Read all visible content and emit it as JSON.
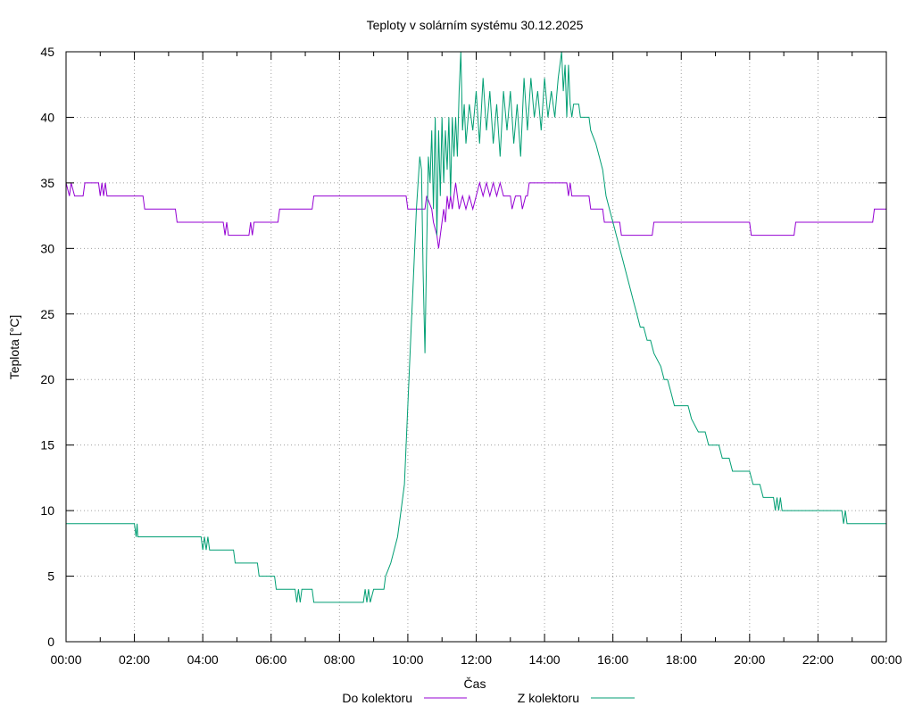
{
  "chart_data": {
    "type": "line",
    "title": "Teploty v solárním systému 30.12.2025",
    "xlabel": "Čas",
    "ylabel": "Teplota [°C]",
    "xlim": [
      0,
      24
    ],
    "ylim": [
      0,
      45
    ],
    "grid": true,
    "legend_position": "bottom",
    "x_ticks": [
      {
        "value": 0,
        "label": "00:00"
      },
      {
        "value": 2,
        "label": "02:00"
      },
      {
        "value": 4,
        "label": "04:00"
      },
      {
        "value": 6,
        "label": "06:00"
      },
      {
        "value": 8,
        "label": "08:00"
      },
      {
        "value": 10,
        "label": "10:00"
      },
      {
        "value": 12,
        "label": "12:00"
      },
      {
        "value": 14,
        "label": "14:00"
      },
      {
        "value": 16,
        "label": "16:00"
      },
      {
        "value": 18,
        "label": "18:00"
      },
      {
        "value": 20,
        "label": "20:00"
      },
      {
        "value": 22,
        "label": "22:00"
      },
      {
        "value": 24,
        "label": "00:00"
      }
    ],
    "y_ticks": [
      {
        "value": 0,
        "label": "0"
      },
      {
        "value": 5,
        "label": "5"
      },
      {
        "value": 10,
        "label": "10"
      },
      {
        "value": 15,
        "label": "15"
      },
      {
        "value": 20,
        "label": "20"
      },
      {
        "value": 25,
        "label": "25"
      },
      {
        "value": 30,
        "label": "30"
      },
      {
        "value": 35,
        "label": "35"
      },
      {
        "value": 40,
        "label": "40"
      },
      {
        "value": 45,
        "label": "45"
      }
    ],
    "series": [
      {
        "name": "Do kolektoru",
        "color": "#9400d3",
        "points": [
          [
            0,
            35
          ],
          [
            0.1,
            34
          ],
          [
            0.15,
            35
          ],
          [
            0.25,
            34
          ],
          [
            0.5,
            34
          ],
          [
            0.55,
            35
          ],
          [
            0.95,
            35
          ],
          [
            1.0,
            34
          ],
          [
            1.05,
            35
          ],
          [
            1.1,
            34
          ],
          [
            1.15,
            35
          ],
          [
            1.2,
            34
          ],
          [
            2.25,
            34
          ],
          [
            2.3,
            33
          ],
          [
            3.2,
            33
          ],
          [
            3.25,
            32
          ],
          [
            4.6,
            32
          ],
          [
            4.65,
            31
          ],
          [
            4.7,
            32
          ],
          [
            4.75,
            31
          ],
          [
            5.35,
            31
          ],
          [
            5.4,
            32
          ],
          [
            5.45,
            31
          ],
          [
            5.5,
            32
          ],
          [
            6.2,
            32
          ],
          [
            6.25,
            33
          ],
          [
            7.2,
            33
          ],
          [
            7.25,
            34
          ],
          [
            9.95,
            34
          ],
          [
            10.0,
            33
          ],
          [
            10.5,
            33
          ],
          [
            10.55,
            34
          ],
          [
            10.7,
            33
          ],
          [
            10.75,
            32
          ],
          [
            10.85,
            31
          ],
          [
            10.9,
            30
          ],
          [
            10.95,
            31
          ],
          [
            11.0,
            32
          ],
          [
            11.05,
            33
          ],
          [
            11.1,
            32
          ],
          [
            11.15,
            34
          ],
          [
            11.2,
            33
          ],
          [
            11.25,
            34
          ],
          [
            11.3,
            33
          ],
          [
            11.35,
            34
          ],
          [
            11.4,
            35
          ],
          [
            11.45,
            34
          ],
          [
            11.5,
            33
          ],
          [
            11.6,
            34
          ],
          [
            11.7,
            33
          ],
          [
            11.8,
            34
          ],
          [
            11.9,
            33
          ],
          [
            12.0,
            34
          ],
          [
            12.1,
            35
          ],
          [
            12.2,
            34
          ],
          [
            12.3,
            35
          ],
          [
            12.4,
            34
          ],
          [
            12.5,
            35
          ],
          [
            12.6,
            34
          ],
          [
            12.7,
            35
          ],
          [
            12.8,
            34
          ],
          [
            13.0,
            34
          ],
          [
            13.05,
            33
          ],
          [
            13.15,
            34
          ],
          [
            13.3,
            34
          ],
          [
            13.35,
            33
          ],
          [
            13.45,
            34
          ],
          [
            13.5,
            34
          ],
          [
            13.55,
            35
          ],
          [
            14.65,
            35
          ],
          [
            14.7,
            34
          ],
          [
            14.75,
            35
          ],
          [
            14.8,
            34
          ],
          [
            15.3,
            34
          ],
          [
            15.35,
            33
          ],
          [
            15.7,
            33
          ],
          [
            15.75,
            32
          ],
          [
            16.2,
            32
          ],
          [
            16.25,
            31
          ],
          [
            17.15,
            31
          ],
          [
            17.2,
            32
          ],
          [
            20.0,
            32
          ],
          [
            20.05,
            31
          ],
          [
            21.3,
            31
          ],
          [
            21.35,
            32
          ],
          [
            23.6,
            32
          ],
          [
            23.65,
            33
          ],
          [
            24,
            33
          ]
        ]
      },
      {
        "name": "Z kolektoru",
        "color": "#009e73",
        "points": [
          [
            0,
            9
          ],
          [
            2.0,
            9
          ],
          [
            2.05,
            8
          ],
          [
            2.08,
            9
          ],
          [
            2.1,
            8
          ],
          [
            3.95,
            8
          ],
          [
            4.0,
            7
          ],
          [
            4.05,
            8
          ],
          [
            4.1,
            7
          ],
          [
            4.15,
            8
          ],
          [
            4.2,
            7
          ],
          [
            4.9,
            7
          ],
          [
            4.95,
            6
          ],
          [
            5.6,
            6
          ],
          [
            5.65,
            5
          ],
          [
            6.1,
            5
          ],
          [
            6.15,
            4
          ],
          [
            6.7,
            4
          ],
          [
            6.75,
            3
          ],
          [
            6.8,
            4
          ],
          [
            6.85,
            3
          ],
          [
            6.9,
            4
          ],
          [
            7.2,
            4
          ],
          [
            7.25,
            3
          ],
          [
            8.7,
            3
          ],
          [
            8.75,
            4
          ],
          [
            8.8,
            3
          ],
          [
            8.85,
            4
          ],
          [
            8.9,
            3
          ],
          [
            9.0,
            4
          ],
          [
            9.3,
            4
          ],
          [
            9.35,
            5
          ],
          [
            9.5,
            6
          ],
          [
            9.6,
            7
          ],
          [
            9.7,
            8
          ],
          [
            9.8,
            10
          ],
          [
            9.9,
            12
          ],
          [
            9.95,
            15
          ],
          [
            10.0,
            18
          ],
          [
            10.05,
            21
          ],
          [
            10.1,
            24
          ],
          [
            10.15,
            27
          ],
          [
            10.2,
            30
          ],
          [
            10.25,
            33
          ],
          [
            10.3,
            35
          ],
          [
            10.35,
            37
          ],
          [
            10.4,
            36
          ],
          [
            10.45,
            28
          ],
          [
            10.5,
            22
          ],
          [
            10.55,
            30
          ],
          [
            10.6,
            37
          ],
          [
            10.65,
            35
          ],
          [
            10.7,
            39
          ],
          [
            10.75,
            33
          ],
          [
            10.8,
            40
          ],
          [
            10.85,
            31
          ],
          [
            10.9,
            39
          ],
          [
            10.95,
            34
          ],
          [
            11.0,
            40
          ],
          [
            11.05,
            35
          ],
          [
            11.1,
            39
          ],
          [
            11.15,
            36
          ],
          [
            11.2,
            40
          ],
          [
            11.25,
            34
          ],
          [
            11.3,
            40
          ],
          [
            11.35,
            37
          ],
          [
            11.4,
            40
          ],
          [
            11.45,
            37
          ],
          [
            11.5,
            42
          ],
          [
            11.55,
            45
          ],
          [
            11.6,
            39
          ],
          [
            11.65,
            41
          ],
          [
            11.7,
            38
          ],
          [
            11.8,
            41
          ],
          [
            11.9,
            39
          ],
          [
            12.0,
            42
          ],
          [
            12.1,
            38
          ],
          [
            12.2,
            43
          ],
          [
            12.3,
            39
          ],
          [
            12.4,
            42
          ],
          [
            12.5,
            38
          ],
          [
            12.6,
            41
          ],
          [
            12.7,
            37
          ],
          [
            12.8,
            42
          ],
          [
            12.9,
            39
          ],
          [
            13.0,
            42
          ],
          [
            13.1,
            38
          ],
          [
            13.2,
            41
          ],
          [
            13.3,
            37
          ],
          [
            13.4,
            43
          ],
          [
            13.5,
            39
          ],
          [
            13.6,
            43
          ],
          [
            13.7,
            40
          ],
          [
            13.8,
            42
          ],
          [
            13.9,
            39
          ],
          [
            14.0,
            43
          ],
          [
            14.1,
            40
          ],
          [
            14.2,
            42
          ],
          [
            14.3,
            40
          ],
          [
            14.4,
            43
          ],
          [
            14.5,
            45
          ],
          [
            14.55,
            42
          ],
          [
            14.6,
            44
          ],
          [
            14.65,
            40
          ],
          [
            14.7,
            44
          ],
          [
            14.75,
            41
          ],
          [
            14.8,
            40
          ],
          [
            14.85,
            41
          ],
          [
            15.0,
            41
          ],
          [
            15.05,
            40
          ],
          [
            15.3,
            40
          ],
          [
            15.35,
            39
          ],
          [
            15.5,
            38
          ],
          [
            15.6,
            37
          ],
          [
            15.7,
            36
          ],
          [
            15.8,
            34
          ],
          [
            15.9,
            33
          ],
          [
            16.0,
            32
          ],
          [
            16.1,
            31
          ],
          [
            16.2,
            30
          ],
          [
            16.3,
            29
          ],
          [
            16.4,
            28
          ],
          [
            16.5,
            27
          ],
          [
            16.6,
            26
          ],
          [
            16.7,
            25
          ],
          [
            16.8,
            24
          ],
          [
            16.9,
            24
          ],
          [
            17.0,
            23
          ],
          [
            17.1,
            23
          ],
          [
            17.2,
            22
          ],
          [
            17.4,
            21
          ],
          [
            17.5,
            20
          ],
          [
            17.6,
            20
          ],
          [
            17.7,
            19
          ],
          [
            17.8,
            18
          ],
          [
            18.2,
            18
          ],
          [
            18.3,
            17
          ],
          [
            18.5,
            16
          ],
          [
            18.7,
            16
          ],
          [
            18.8,
            15
          ],
          [
            19.1,
            15
          ],
          [
            19.2,
            14
          ],
          [
            19.4,
            14
          ],
          [
            19.5,
            13
          ],
          [
            20.0,
            13
          ],
          [
            20.1,
            12
          ],
          [
            20.3,
            12
          ],
          [
            20.4,
            11
          ],
          [
            20.7,
            11
          ],
          [
            20.75,
            10
          ],
          [
            20.8,
            11
          ],
          [
            20.85,
            10
          ],
          [
            20.9,
            11
          ],
          [
            20.95,
            10
          ],
          [
            21.0,
            10
          ],
          [
            22.7,
            10
          ],
          [
            22.75,
            9
          ],
          [
            22.8,
            10
          ],
          [
            22.85,
            9
          ],
          [
            24,
            9
          ]
        ]
      }
    ]
  }
}
